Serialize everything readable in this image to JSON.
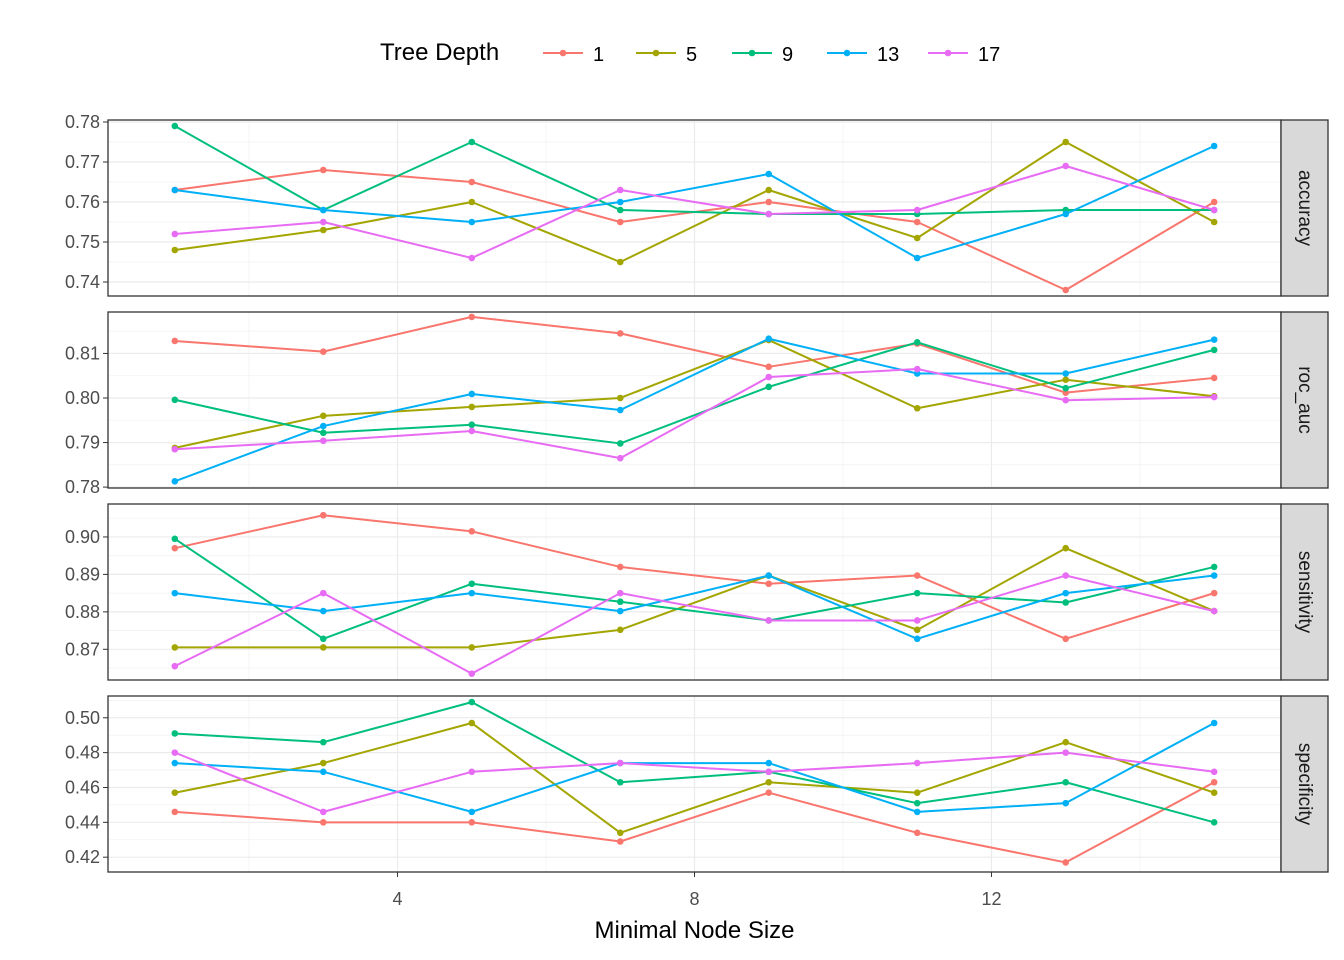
{
  "chart_data": {
    "type": "line",
    "xlabel": "Minimal Node Size",
    "legend": {
      "title": "Tree Depth",
      "position": "top"
    },
    "x": [
      1,
      3,
      5,
      7,
      9,
      11,
      13,
      15
    ],
    "xlim": [
      0.1,
      15.9
    ],
    "xticks": [
      4,
      8,
      12
    ],
    "xtick_labels": [
      "4",
      "8",
      "12"
    ],
    "grid": true,
    "colors": {
      "1": "#F8766D",
      "5": "#A3A500",
      "9": "#00BF7D",
      "13": "#00B0F6",
      "17": "#E76BF3"
    },
    "series_names": [
      "1",
      "5",
      "9",
      "13",
      "17"
    ],
    "panels": [
      {
        "strip": "accuracy",
        "ylim": [
          0.7365,
          0.7805
        ],
        "yticks": [
          0.74,
          0.75,
          0.76,
          0.77,
          0.78
        ],
        "ytick_labels": [
          "0.74",
          "0.75",
          "0.76",
          "0.77",
          "0.78"
        ],
        "series": [
          {
            "name": "1",
            "values": [
              0.763,
              0.768,
              0.765,
              0.755,
              0.76,
              0.755,
              0.738,
              0.76
            ]
          },
          {
            "name": "5",
            "values": [
              0.748,
              0.753,
              0.76,
              0.745,
              0.763,
              0.751,
              0.775,
              0.755
            ]
          },
          {
            "name": "9",
            "values": [
              0.779,
              0.758,
              0.775,
              0.758,
              0.757,
              0.757,
              0.758,
              0.758
            ]
          },
          {
            "name": "13",
            "values": [
              0.763,
              0.758,
              0.755,
              0.76,
              0.767,
              0.746,
              0.757,
              0.774
            ]
          },
          {
            "name": "17",
            "values": [
              0.752,
              0.755,
              0.746,
              0.763,
              0.757,
              0.758,
              0.769,
              0.758
            ]
          }
        ]
      },
      {
        "strip": "roc_auc",
        "ylim": [
          0.7798,
          0.8193
        ],
        "yticks": [
          0.78,
          0.79,
          0.8,
          0.81
        ],
        "ytick_labels": [
          "0.78",
          "0.79",
          "0.80",
          "0.81"
        ],
        "series": [
          {
            "name": "1",
            "values": [
              0.8128,
              0.8104,
              0.8182,
              0.8145,
              0.807,
              0.8122,
              0.8012,
              0.8045
            ]
          },
          {
            "name": "5",
            "values": [
              0.7888,
              0.796,
              0.798,
              0.8,
              0.813,
              0.7977,
              0.8041,
              0.8004
            ]
          },
          {
            "name": "9",
            "values": [
              0.7996,
              0.7922,
              0.794,
              0.7898,
              0.8025,
              0.8125,
              0.8022,
              0.8108
            ]
          },
          {
            "name": "13",
            "values": [
              0.7813,
              0.7937,
              0.8009,
              0.7973,
              0.8133,
              0.8055,
              0.8055,
              0.8131
            ]
          },
          {
            "name": "17",
            "values": [
              0.7885,
              0.7904,
              0.7926,
              0.7865,
              0.8047,
              0.8065,
              0.7995,
              0.8002
            ]
          }
        ]
      },
      {
        "strip": "sensitivity",
        "ylim": [
          0.8618,
          0.9088
        ],
        "yticks": [
          0.87,
          0.88,
          0.89,
          0.9
        ],
        "ytick_labels": [
          "0.87",
          "0.88",
          "0.89",
          "0.90"
        ],
        "series": [
          {
            "name": "1",
            "values": [
              0.897,
              0.9058,
              0.9015,
              0.892,
              0.8875,
              0.8897,
              0.8728,
              0.885
            ]
          },
          {
            "name": "5",
            "values": [
              0.8705,
              0.8705,
              0.8705,
              0.8752,
              0.8897,
              0.8752,
              0.897,
              0.8802
            ]
          },
          {
            "name": "9",
            "values": [
              0.8995,
              0.8728,
              0.8875,
              0.8827,
              0.8777,
              0.885,
              0.8825,
              0.892
            ]
          },
          {
            "name": "13",
            "values": [
              0.885,
              0.8802,
              0.885,
              0.8802,
              0.8897,
              0.8728,
              0.885,
              0.8897
            ]
          },
          {
            "name": "17",
            "values": [
              0.8655,
              0.885,
              0.8635,
              0.885,
              0.8777,
              0.8777,
              0.8897,
              0.8802
            ]
          }
        ]
      },
      {
        "strip": "specificity",
        "ylim": [
          0.4115,
          0.5125
        ],
        "yticks": [
          0.42,
          0.44,
          0.46,
          0.48,
          0.5
        ],
        "ytick_labels": [
          "0.42",
          "0.44",
          "0.46",
          "0.48",
          "0.50"
        ],
        "series": [
          {
            "name": "1",
            "values": [
              0.446,
              0.44,
              0.44,
              0.429,
              0.457,
              0.434,
              0.417,
              0.463
            ]
          },
          {
            "name": "5",
            "values": [
              0.457,
              0.474,
              0.497,
              0.434,
              0.463,
              0.457,
              0.486,
              0.457
            ]
          },
          {
            "name": "9",
            "values": [
              0.491,
              0.486,
              0.509,
              0.463,
              0.469,
              0.451,
              0.463,
              0.44
            ]
          },
          {
            "name": "13",
            "values": [
              0.474,
              0.469,
              0.446,
              0.474,
              0.474,
              0.446,
              0.451,
              0.497
            ]
          },
          {
            "name": "17",
            "values": [
              0.48,
              0.446,
              0.469,
              0.474,
              0.469,
              0.474,
              0.48,
              0.469
            ]
          }
        ]
      }
    ]
  }
}
